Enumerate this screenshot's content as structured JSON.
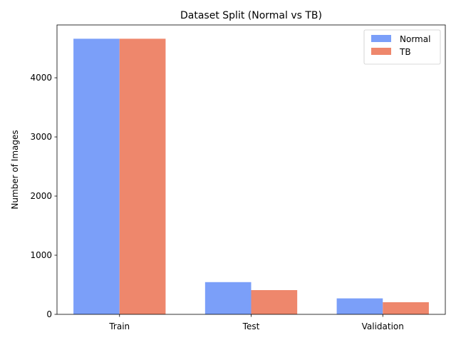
{
  "chart_data": {
    "type": "bar",
    "title": "Dataset Split (Normal vs TB)",
    "xlabel": "",
    "ylabel": "Number of Images",
    "categories": [
      "Train",
      "Test",
      "Validation"
    ],
    "series": [
      {
        "name": "Normal",
        "values": [
          4660,
          545,
          270
        ],
        "color": "#7b9ff9"
      },
      {
        "name": "TB",
        "values": [
          4660,
          410,
          205
        ],
        "color": "#ee876c"
      }
    ],
    "ylim": [
      0,
      4893
    ],
    "yticks": [
      0,
      1000,
      2000,
      3000,
      4000
    ],
    "legend_position": "top-right",
    "grid": false
  }
}
